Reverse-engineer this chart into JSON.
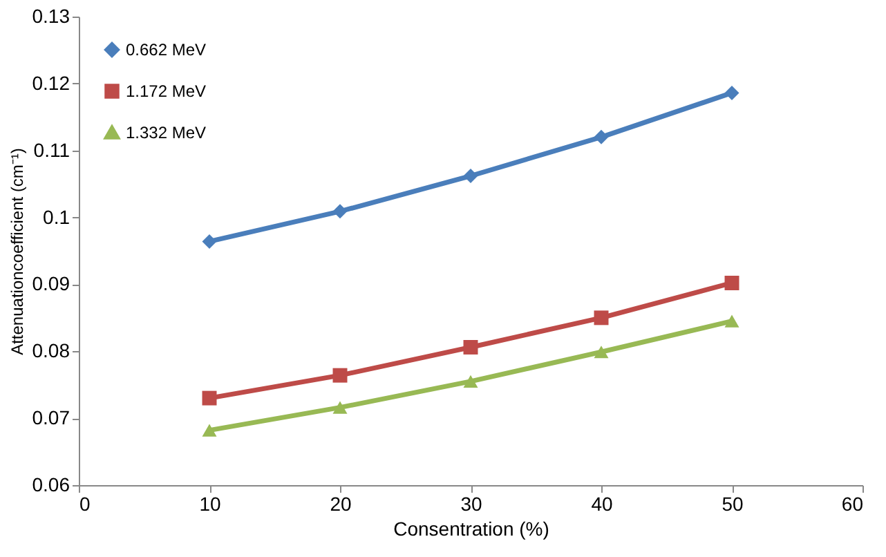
{
  "chart_data": {
    "type": "line",
    "xlabel": "Consentration (%)",
    "ylabel": "Attenuationcoefficient  (cm⁻¹)",
    "x": [
      10,
      20,
      30,
      40,
      50
    ],
    "series": [
      {
        "name": "0.662 MeV",
        "color": "#4a7ebb",
        "marker": "diamond",
        "values": [
          0.0964,
          0.1009,
          0.1062,
          0.112,
          0.1186
        ]
      },
      {
        "name": "1.172 MeV",
        "color": "#be4b48",
        "marker": "square",
        "values": [
          0.073,
          0.0764,
          0.0806,
          0.085,
          0.0902
        ]
      },
      {
        "name": "1.332 MeV",
        "color": "#98b954",
        "marker": "triangle",
        "values": [
          0.0682,
          0.0716,
          0.0755,
          0.0799,
          0.0845
        ]
      }
    ],
    "xlim": [
      0,
      60
    ],
    "xticks": [
      0,
      10,
      20,
      30,
      40,
      50,
      60
    ],
    "ylim": [
      0.06,
      0.13
    ],
    "yticks": [
      0.06,
      0.07,
      0.08,
      0.09,
      0.1,
      0.11,
      0.12,
      0.13
    ],
    "grid": false,
    "legend": "top left"
  }
}
